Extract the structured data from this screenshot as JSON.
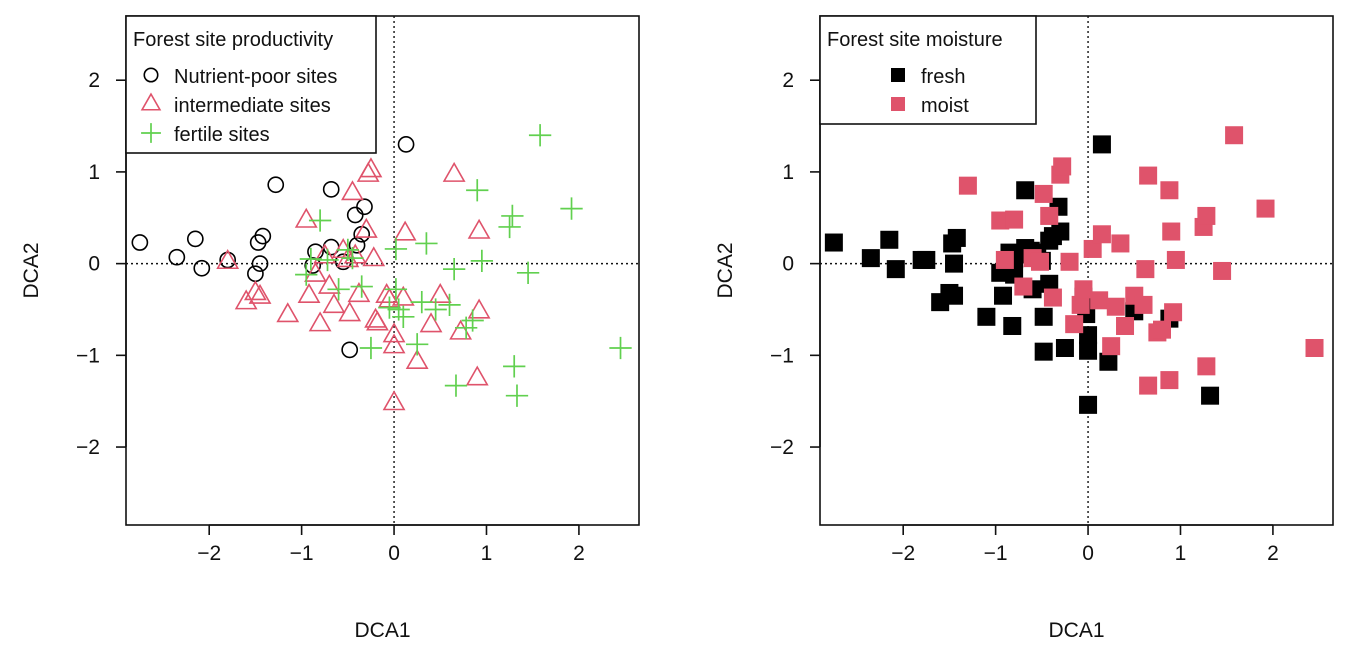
{
  "chart_data": [
    {
      "type": "scatter",
      "xlabel": "DCA1",
      "ylabel": "DCA2",
      "xlim": [
        -2.9,
        2.65
      ],
      "ylim": [
        -2.85,
        2.7
      ],
      "xticks": [
        -2,
        -1,
        0,
        1,
        2
      ],
      "yticks": [
        -2,
        -1,
        0,
        1,
        2
      ],
      "xtick_labels": [
        "−2",
        "−1",
        "0",
        "1",
        "2"
      ],
      "ytick_labels": [
        "−2",
        "−1",
        "0",
        "1",
        "2"
      ],
      "reference_lines": {
        "x": 0,
        "y": 0,
        "style": "dotted"
      },
      "legend": {
        "title": "Forest site productivity",
        "placement": "top-left",
        "entries": [
          {
            "label": "Nutrient-poor sites",
            "marker": "circle",
            "color": "#000000"
          },
          {
            "label": "intermediate sites",
            "marker": "triangle",
            "color": "#DF536B"
          },
          {
            "label": "fertile sites",
            "marker": "plus",
            "color": "#61D04F"
          }
        ]
      },
      "series": [
        {
          "name": "Nutrient-poor sites",
          "marker": "circle",
          "color": "#000000",
          "points": [
            [
              -2.75,
              0.23
            ],
            [
              -2.35,
              0.07
            ],
            [
              -2.15,
              0.27
            ],
            [
              -2.08,
              -0.05
            ],
            [
              -1.8,
              0.04
            ],
            [
              -1.5,
              -0.11
            ],
            [
              -1.47,
              0.23
            ],
            [
              -1.45,
              0.0
            ],
            [
              -1.42,
              0.3
            ],
            [
              -1.28,
              0.86
            ],
            [
              -0.88,
              -0.02
            ],
            [
              -0.85,
              0.13
            ],
            [
              -0.68,
              0.81
            ],
            [
              -0.68,
              0.18
            ],
            [
              -0.55,
              0.02
            ],
            [
              -0.48,
              -0.94
            ],
            [
              -0.42,
              0.53
            ],
            [
              -0.4,
              0.2
            ],
            [
              -0.35,
              0.32
            ],
            [
              -0.32,
              0.62
            ],
            [
              0.13,
              1.3
            ]
          ]
        },
        {
          "name": "intermediate sites",
          "marker": "triangle",
          "color": "#DF536B",
          "points": [
            [
              -1.8,
              0.02
            ],
            [
              -1.6,
              -0.42
            ],
            [
              -1.5,
              -0.32
            ],
            [
              -1.45,
              -0.36
            ],
            [
              -1.15,
              -0.56
            ],
            [
              -0.95,
              0.47
            ],
            [
              -0.92,
              -0.35
            ],
            [
              -0.85,
              -0.12
            ],
            [
              -0.8,
              -0.66
            ],
            [
              -0.75,
              0.08
            ],
            [
              -0.7,
              -0.25
            ],
            [
              -0.65,
              -0.46
            ],
            [
              -0.55,
              0.14
            ],
            [
              -0.5,
              0.04
            ],
            [
              -0.48,
              -0.55
            ],
            [
              -0.45,
              0.77
            ],
            [
              -0.42,
              0.08
            ],
            [
              -0.38,
              -0.34
            ],
            [
              -0.3,
              0.36
            ],
            [
              -0.28,
              0.97
            ],
            [
              -0.25,
              1.02
            ],
            [
              -0.22,
              0.05
            ],
            [
              -0.2,
              -0.62
            ],
            [
              -0.18,
              -0.65
            ],
            [
              -0.08,
              -0.35
            ],
            [
              -0.05,
              -0.4
            ],
            [
              0.0,
              -0.78
            ],
            [
              0.0,
              -0.9
            ],
            [
              0.0,
              -1.52
            ],
            [
              0.1,
              -0.38
            ],
            [
              0.12,
              0.33
            ],
            [
              0.25,
              -1.07
            ],
            [
              0.4,
              -0.67
            ],
            [
              0.5,
              -0.35
            ],
            [
              0.65,
              0.97
            ],
            [
              0.72,
              -0.75
            ],
            [
              0.9,
              -1.25
            ],
            [
              0.92,
              -0.52
            ],
            [
              0.92,
              0.35
            ]
          ]
        },
        {
          "name": "fertile sites",
          "marker": "plus",
          "color": "#61D04F",
          "points": [
            [
              -0.95,
              -0.12
            ],
            [
              -0.9,
              0.05
            ],
            [
              -0.8,
              0.47
            ],
            [
              -0.72,
              0.04
            ],
            [
              -0.6,
              -0.28
            ],
            [
              -0.5,
              0.15
            ],
            [
              -0.45,
              0.06
            ],
            [
              -0.35,
              -0.25
            ],
            [
              -0.25,
              -0.92
            ],
            [
              -0.05,
              -0.48
            ],
            [
              0.02,
              0.16
            ],
            [
              0.02,
              -0.28
            ],
            [
              0.05,
              -0.5
            ],
            [
              0.1,
              -0.58
            ],
            [
              0.25,
              -0.88
            ],
            [
              0.3,
              -0.42
            ],
            [
              0.35,
              0.22
            ],
            [
              0.45,
              -0.5
            ],
            [
              0.6,
              -0.45
            ],
            [
              0.65,
              -0.06
            ],
            [
              0.67,
              -1.33
            ],
            [
              0.78,
              -0.7
            ],
            [
              0.85,
              -0.62
            ],
            [
              0.9,
              0.8
            ],
            [
              0.95,
              0.03
            ],
            [
              1.25,
              0.4
            ],
            [
              1.28,
              0.52
            ],
            [
              1.3,
              -1.12
            ],
            [
              1.33,
              -1.44
            ],
            [
              1.45,
              -0.1
            ],
            [
              1.58,
              1.4
            ],
            [
              1.92,
              0.6
            ],
            [
              2.45,
              -0.92
            ]
          ]
        }
      ]
    },
    {
      "type": "scatter",
      "xlabel": "DCA1",
      "ylabel": "DCA2",
      "xlim": [
        -2.9,
        2.65
      ],
      "ylim": [
        -2.85,
        2.7
      ],
      "xticks": [
        -2,
        -1,
        0,
        1,
        2
      ],
      "yticks": [
        -2,
        -1,
        0,
        1,
        2
      ],
      "xtick_labels": [
        "−2",
        "−1",
        "0",
        "1",
        "2"
      ],
      "ytick_labels": [
        "−2",
        "−1",
        "0",
        "1",
        "2"
      ],
      "reference_lines": {
        "x": 0,
        "y": 0,
        "style": "dotted"
      },
      "legend": {
        "title": "Forest site moisture",
        "placement": "top-left",
        "entries": [
          {
            "label": "fresh",
            "marker": "square",
            "color": "#000000"
          },
          {
            "label": "moist",
            "marker": "square",
            "color": "#DF536B"
          }
        ]
      },
      "series": [
        {
          "name": "fresh",
          "marker": "square",
          "color": "#000000",
          "points": [
            [
              -2.75,
              0.23
            ],
            [
              -2.35,
              0.06
            ],
            [
              -2.15,
              0.26
            ],
            [
              -2.08,
              -0.06
            ],
            [
              -1.8,
              0.04
            ],
            [
              -1.75,
              0.04
            ],
            [
              -1.6,
              -0.42
            ],
            [
              -1.5,
              -0.32
            ],
            [
              -1.47,
              0.22
            ],
            [
              -1.45,
              -0.35
            ],
            [
              -1.45,
              0.0
            ],
            [
              -1.42,
              0.28
            ],
            [
              -1.1,
              -0.58
            ],
            [
              -0.95,
              -0.1
            ],
            [
              -0.92,
              -0.35
            ],
            [
              -0.88,
              0.0
            ],
            [
              -0.85,
              0.12
            ],
            [
              -0.82,
              -0.68
            ],
            [
              -0.8,
              0.05
            ],
            [
              -0.8,
              -0.12
            ],
            [
              -0.75,
              0.1
            ],
            [
              -0.68,
              0.8
            ],
            [
              -0.68,
              0.17
            ],
            [
              -0.62,
              0.14
            ],
            [
              -0.6,
              -0.28
            ],
            [
              -0.55,
              0.12
            ],
            [
              -0.5,
              0.03
            ],
            [
              -0.48,
              -0.96
            ],
            [
              -0.48,
              -0.58
            ],
            [
              -0.42,
              -0.22
            ],
            [
              -0.42,
              0.25
            ],
            [
              -0.38,
              0.3
            ],
            [
              -0.32,
              0.62
            ],
            [
              -0.3,
              0.35
            ],
            [
              -0.25,
              -0.92
            ],
            [
              -0.05,
              -0.36
            ],
            [
              -0.02,
              -0.55
            ],
            [
              0.0,
              -0.78
            ],
            [
              0.0,
              -0.95
            ],
            [
              0.0,
              -1.54
            ],
            [
              0.15,
              1.3
            ],
            [
              0.22,
              -1.07
            ],
            [
              0.5,
              -0.52
            ],
            [
              0.88,
              -0.6
            ],
            [
              1.32,
              -1.44
            ]
          ]
        },
        {
          "name": "moist",
          "marker": "square",
          "color": "#DF536B",
          "points": [
            [
              -1.3,
              0.85
            ],
            [
              -0.95,
              0.47
            ],
            [
              -0.9,
              0.04
            ],
            [
              -0.8,
              0.48
            ],
            [
              -0.7,
              -0.25
            ],
            [
              -0.6,
              0.06
            ],
            [
              -0.52,
              0.02
            ],
            [
              -0.48,
              0.76
            ],
            [
              -0.42,
              0.52
            ],
            [
              -0.38,
              -0.37
            ],
            [
              -0.3,
              0.97
            ],
            [
              -0.28,
              1.06
            ],
            [
              -0.2,
              0.02
            ],
            [
              -0.15,
              -0.66
            ],
            [
              -0.08,
              -0.45
            ],
            [
              -0.05,
              -0.28
            ],
            [
              0.05,
              0.16
            ],
            [
              0.12,
              -0.4
            ],
            [
              0.15,
              0.32
            ],
            [
              0.25,
              -0.9
            ],
            [
              0.3,
              -0.47
            ],
            [
              0.35,
              0.22
            ],
            [
              0.4,
              -0.68
            ],
            [
              0.5,
              -0.35
            ],
            [
              0.6,
              -0.45
            ],
            [
              0.62,
              -0.06
            ],
            [
              0.65,
              0.96
            ],
            [
              0.65,
              -1.33
            ],
            [
              0.75,
              -0.75
            ],
            [
              0.8,
              -0.72
            ],
            [
              0.88,
              0.8
            ],
            [
              0.88,
              -1.27
            ],
            [
              0.9,
              0.35
            ],
            [
              0.92,
              -0.53
            ],
            [
              0.95,
              0.04
            ],
            [
              1.25,
              0.4
            ],
            [
              1.28,
              0.52
            ],
            [
              1.28,
              -1.12
            ],
            [
              1.45,
              -0.08
            ],
            [
              1.58,
              1.4
            ],
            [
              1.92,
              0.6
            ],
            [
              2.45,
              -0.92
            ]
          ]
        }
      ]
    }
  ]
}
